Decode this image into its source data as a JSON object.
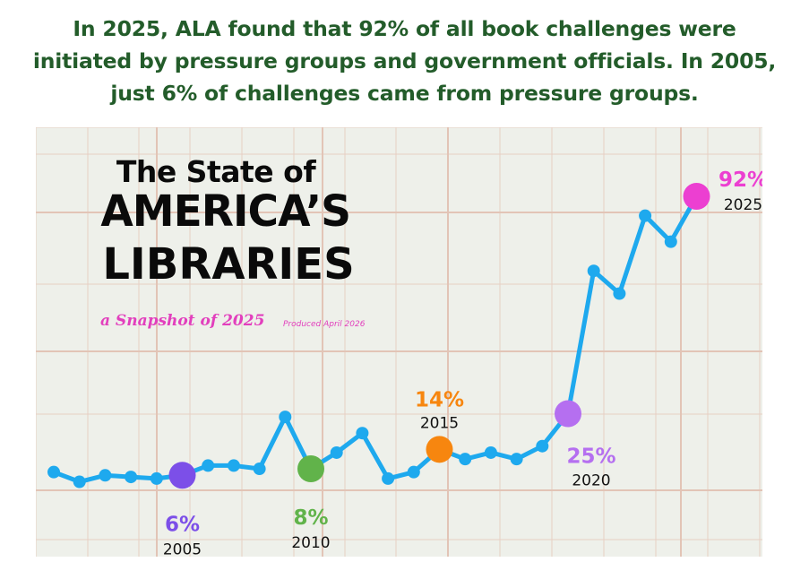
{
  "headline": {
    "line1": "In 2025, ALA found that 92% of all book challenges were",
    "line2": "initiated by pressure groups and government officials. In 2005,",
    "line3": "just 6% of challenges came from pressure groups."
  },
  "brand": {
    "line1": "The State of",
    "line2": "AMERICA’S",
    "line3": "LIBRARIES",
    "tagline": "a Snapshot of 2025",
    "produced": "Produced April 2026"
  },
  "colors": {
    "line": "#1ea9ee",
    "headline": "#235c2a",
    "background": "#eef0ea",
    "grid": "#e7cfc3",
    "pink": "#e23fbd"
  },
  "chart_data": {
    "type": "line",
    "title": "",
    "xlabel": "",
    "ylabel": "",
    "x": [
      2000,
      2001,
      2002,
      2003,
      2004,
      2005,
      2006,
      2007,
      2008,
      2009,
      2010,
      2011,
      2012,
      2013,
      2014,
      2015,
      2016,
      2017,
      2018,
      2019,
      2020,
      2021,
      2022,
      2023,
      2024,
      2025
    ],
    "values": [
      7,
      4,
      6,
      5.5,
      5,
      6,
      9,
      9,
      8,
      24,
      8,
      13,
      19,
      5,
      7,
      14,
      11,
      13,
      11,
      15,
      25,
      69,
      62,
      86,
      78,
      92
    ],
    "ylim": [
      0,
      100
    ],
    "highlights": [
      {
        "year": "2005",
        "label": "6%",
        "color": "#7c4fe8"
      },
      {
        "year": "2010",
        "label": "8%",
        "color": "#61b34a"
      },
      {
        "year": "2015",
        "label": "14%",
        "color": "#f7860f"
      },
      {
        "year": "2020",
        "label": "25%",
        "color": "#b56ff0"
      },
      {
        "year": "2025",
        "label": "92%",
        "color": "#ec3fd1"
      }
    ]
  }
}
